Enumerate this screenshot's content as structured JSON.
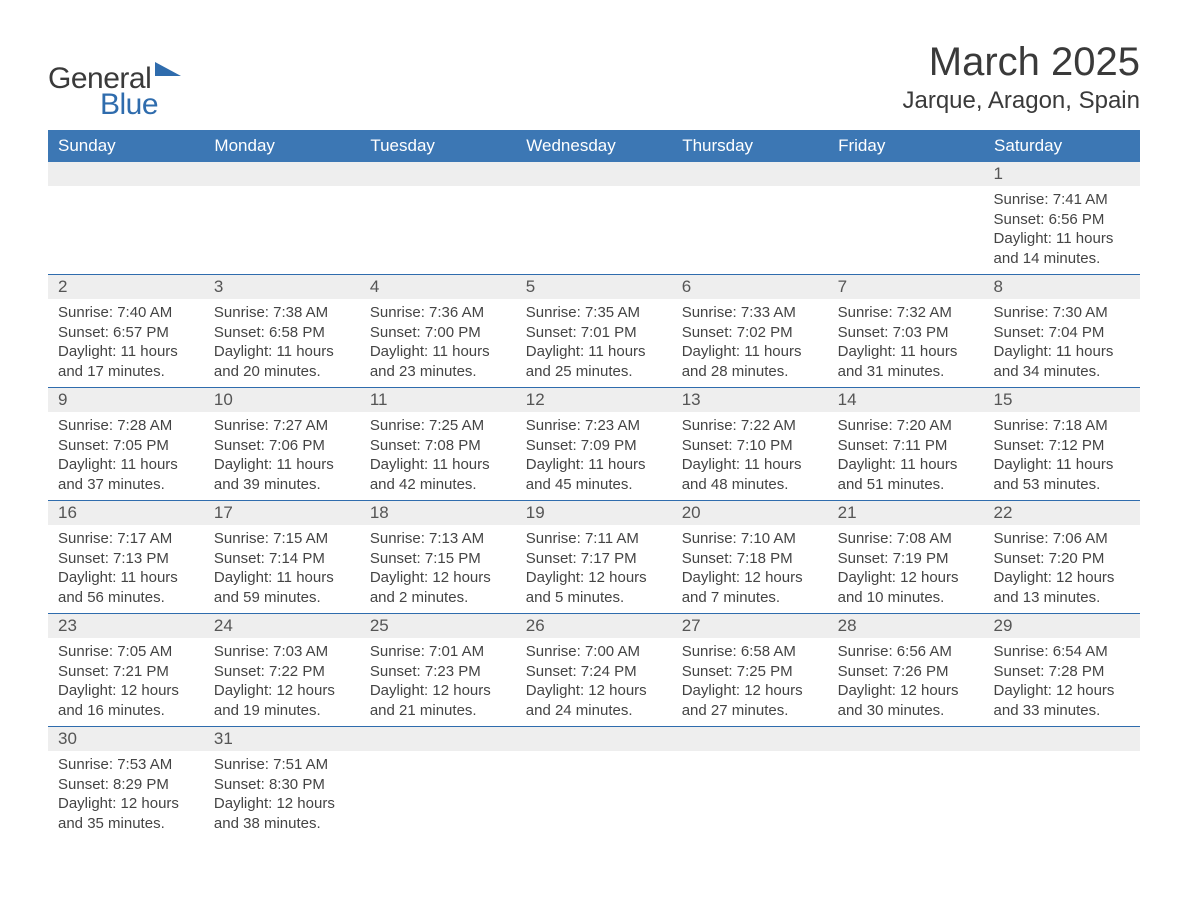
{
  "logo": {
    "general": "General",
    "blue": "Blue"
  },
  "header": {
    "month": "March 2025",
    "location": "Jarque, Aragon, Spain"
  },
  "colors": {
    "header_bg": "#3c77b4",
    "header_text": "#ffffff",
    "daynum_bg": "#eeeeee",
    "week_border": "#2f6cad",
    "text": "#3a3a3a",
    "logo_accent": "#2f6cad"
  },
  "weekdays": [
    "Sunday",
    "Monday",
    "Tuesday",
    "Wednesday",
    "Thursday",
    "Friday",
    "Saturday"
  ],
  "weeks": [
    [
      null,
      null,
      null,
      null,
      null,
      null,
      {
        "d": "1",
        "sr": "Sunrise: 7:41 AM",
        "ss": "Sunset: 6:56 PM",
        "dl1": "Daylight: 11 hours",
        "dl2": "and 14 minutes."
      }
    ],
    [
      {
        "d": "2",
        "sr": "Sunrise: 7:40 AM",
        "ss": "Sunset: 6:57 PM",
        "dl1": "Daylight: 11 hours",
        "dl2": "and 17 minutes."
      },
      {
        "d": "3",
        "sr": "Sunrise: 7:38 AM",
        "ss": "Sunset: 6:58 PM",
        "dl1": "Daylight: 11 hours",
        "dl2": "and 20 minutes."
      },
      {
        "d": "4",
        "sr": "Sunrise: 7:36 AM",
        "ss": "Sunset: 7:00 PM",
        "dl1": "Daylight: 11 hours",
        "dl2": "and 23 minutes."
      },
      {
        "d": "5",
        "sr": "Sunrise: 7:35 AM",
        "ss": "Sunset: 7:01 PM",
        "dl1": "Daylight: 11 hours",
        "dl2": "and 25 minutes."
      },
      {
        "d": "6",
        "sr": "Sunrise: 7:33 AM",
        "ss": "Sunset: 7:02 PM",
        "dl1": "Daylight: 11 hours",
        "dl2": "and 28 minutes."
      },
      {
        "d": "7",
        "sr": "Sunrise: 7:32 AM",
        "ss": "Sunset: 7:03 PM",
        "dl1": "Daylight: 11 hours",
        "dl2": "and 31 minutes."
      },
      {
        "d": "8",
        "sr": "Sunrise: 7:30 AM",
        "ss": "Sunset: 7:04 PM",
        "dl1": "Daylight: 11 hours",
        "dl2": "and 34 minutes."
      }
    ],
    [
      {
        "d": "9",
        "sr": "Sunrise: 7:28 AM",
        "ss": "Sunset: 7:05 PM",
        "dl1": "Daylight: 11 hours",
        "dl2": "and 37 minutes."
      },
      {
        "d": "10",
        "sr": "Sunrise: 7:27 AM",
        "ss": "Sunset: 7:06 PM",
        "dl1": "Daylight: 11 hours",
        "dl2": "and 39 minutes."
      },
      {
        "d": "11",
        "sr": "Sunrise: 7:25 AM",
        "ss": "Sunset: 7:08 PM",
        "dl1": "Daylight: 11 hours",
        "dl2": "and 42 minutes."
      },
      {
        "d": "12",
        "sr": "Sunrise: 7:23 AM",
        "ss": "Sunset: 7:09 PM",
        "dl1": "Daylight: 11 hours",
        "dl2": "and 45 minutes."
      },
      {
        "d": "13",
        "sr": "Sunrise: 7:22 AM",
        "ss": "Sunset: 7:10 PM",
        "dl1": "Daylight: 11 hours",
        "dl2": "and 48 minutes."
      },
      {
        "d": "14",
        "sr": "Sunrise: 7:20 AM",
        "ss": "Sunset: 7:11 PM",
        "dl1": "Daylight: 11 hours",
        "dl2": "and 51 minutes."
      },
      {
        "d": "15",
        "sr": "Sunrise: 7:18 AM",
        "ss": "Sunset: 7:12 PM",
        "dl1": "Daylight: 11 hours",
        "dl2": "and 53 minutes."
      }
    ],
    [
      {
        "d": "16",
        "sr": "Sunrise: 7:17 AM",
        "ss": "Sunset: 7:13 PM",
        "dl1": "Daylight: 11 hours",
        "dl2": "and 56 minutes."
      },
      {
        "d": "17",
        "sr": "Sunrise: 7:15 AM",
        "ss": "Sunset: 7:14 PM",
        "dl1": "Daylight: 11 hours",
        "dl2": "and 59 minutes."
      },
      {
        "d": "18",
        "sr": "Sunrise: 7:13 AM",
        "ss": "Sunset: 7:15 PM",
        "dl1": "Daylight: 12 hours",
        "dl2": "and 2 minutes."
      },
      {
        "d": "19",
        "sr": "Sunrise: 7:11 AM",
        "ss": "Sunset: 7:17 PM",
        "dl1": "Daylight: 12 hours",
        "dl2": "and 5 minutes."
      },
      {
        "d": "20",
        "sr": "Sunrise: 7:10 AM",
        "ss": "Sunset: 7:18 PM",
        "dl1": "Daylight: 12 hours",
        "dl2": "and 7 minutes."
      },
      {
        "d": "21",
        "sr": "Sunrise: 7:08 AM",
        "ss": "Sunset: 7:19 PM",
        "dl1": "Daylight: 12 hours",
        "dl2": "and 10 minutes."
      },
      {
        "d": "22",
        "sr": "Sunrise: 7:06 AM",
        "ss": "Sunset: 7:20 PM",
        "dl1": "Daylight: 12 hours",
        "dl2": "and 13 minutes."
      }
    ],
    [
      {
        "d": "23",
        "sr": "Sunrise: 7:05 AM",
        "ss": "Sunset: 7:21 PM",
        "dl1": "Daylight: 12 hours",
        "dl2": "and 16 minutes."
      },
      {
        "d": "24",
        "sr": "Sunrise: 7:03 AM",
        "ss": "Sunset: 7:22 PM",
        "dl1": "Daylight: 12 hours",
        "dl2": "and 19 minutes."
      },
      {
        "d": "25",
        "sr": "Sunrise: 7:01 AM",
        "ss": "Sunset: 7:23 PM",
        "dl1": "Daylight: 12 hours",
        "dl2": "and 21 minutes."
      },
      {
        "d": "26",
        "sr": "Sunrise: 7:00 AM",
        "ss": "Sunset: 7:24 PM",
        "dl1": "Daylight: 12 hours",
        "dl2": "and 24 minutes."
      },
      {
        "d": "27",
        "sr": "Sunrise: 6:58 AM",
        "ss": "Sunset: 7:25 PM",
        "dl1": "Daylight: 12 hours",
        "dl2": "and 27 minutes."
      },
      {
        "d": "28",
        "sr": "Sunrise: 6:56 AM",
        "ss": "Sunset: 7:26 PM",
        "dl1": "Daylight: 12 hours",
        "dl2": "and 30 minutes."
      },
      {
        "d": "29",
        "sr": "Sunrise: 6:54 AM",
        "ss": "Sunset: 7:28 PM",
        "dl1": "Daylight: 12 hours",
        "dl2": "and 33 minutes."
      }
    ],
    [
      {
        "d": "30",
        "sr": "Sunrise: 7:53 AM",
        "ss": "Sunset: 8:29 PM",
        "dl1": "Daylight: 12 hours",
        "dl2": "and 35 minutes."
      },
      {
        "d": "31",
        "sr": "Sunrise: 7:51 AM",
        "ss": "Sunset: 8:30 PM",
        "dl1": "Daylight: 12 hours",
        "dl2": "and 38 minutes."
      },
      null,
      null,
      null,
      null,
      null
    ]
  ]
}
